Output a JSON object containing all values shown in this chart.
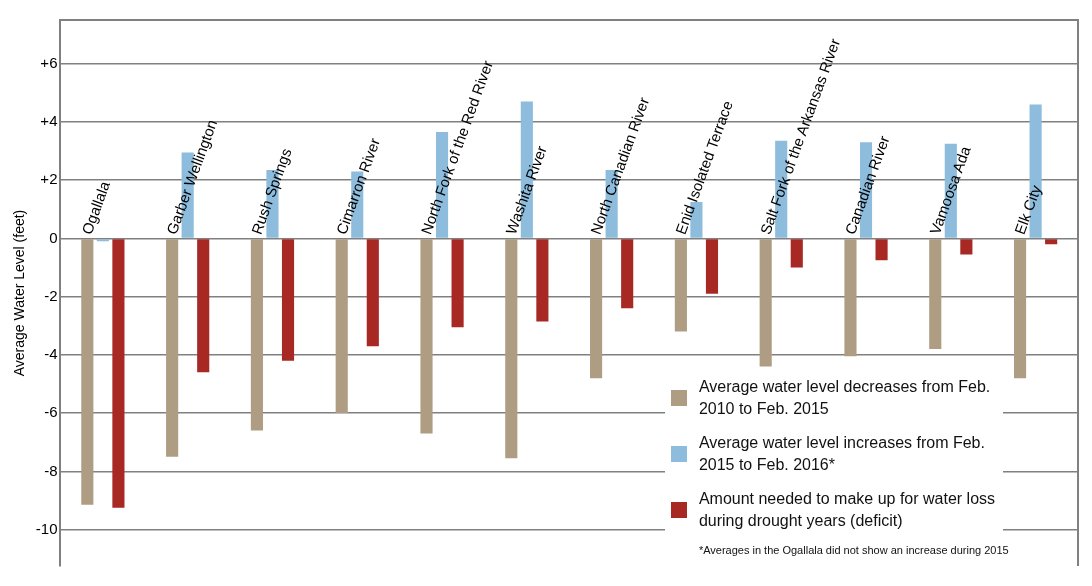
{
  "chart_data": {
    "type": "bar",
    "ylabel": "Average Water Level (feet)",
    "categories": [
      "Ogallala",
      "Garber Wellington",
      "Rush Springs",
      "Cimarron River",
      "North Fork of the Red River",
      "Washita River",
      "North Canadian River",
      "Enid Isolated Terrace",
      "Salt Fork of the Arkansas River",
      "Canadian River",
      "Vamoosa Ada",
      "Elk City"
    ],
    "series": [
      {
        "name": "Average water level decreases from Feb. 2010 to Feb. 2015",
        "color": "#ae9d82",
        "values": [
          -9.15,
          -7.5,
          -6.6,
          -6,
          -6.7,
          -7.55,
          -4.8,
          -3.2,
          -4.4,
          -4.05,
          -3.8,
          -4.8
        ]
      },
      {
        "name": "Average water level increases from Feb. 2015 to Feb. 2016*",
        "color": "#8dbcdc",
        "values": [
          -0.1,
          2.95,
          2.35,
          2.3,
          3.65,
          4.7,
          2.35,
          1.25,
          3.35,
          3.3,
          3.25,
          4.6
        ]
      },
      {
        "name": "Amount needed to make up for water loss during drought years (deficit)",
        "color": "#a82824",
        "values": [
          -9.25,
          -4.6,
          -4.2,
          -3.7,
          -3.05,
          -2.85,
          -2.4,
          -1.9,
          -1,
          -0.75,
          -0.55,
          -0.2
        ]
      }
    ],
    "ylim": [
      -11.25,
      7.5
    ],
    "yticks": [
      {
        "value": -10,
        "label": "-10"
      },
      -8,
      -6,
      -4,
      -2,
      0,
      {
        "value": 2,
        "label": "+2"
      },
      {
        "value": 4,
        "label": "+4"
      },
      {
        "value": 6,
        "label": "+6"
      }
    ],
    "grid": "y",
    "legend": "bottom right",
    "annotations": [
      "*Averages in the Ogallala did not show an increase during 2015"
    ]
  }
}
